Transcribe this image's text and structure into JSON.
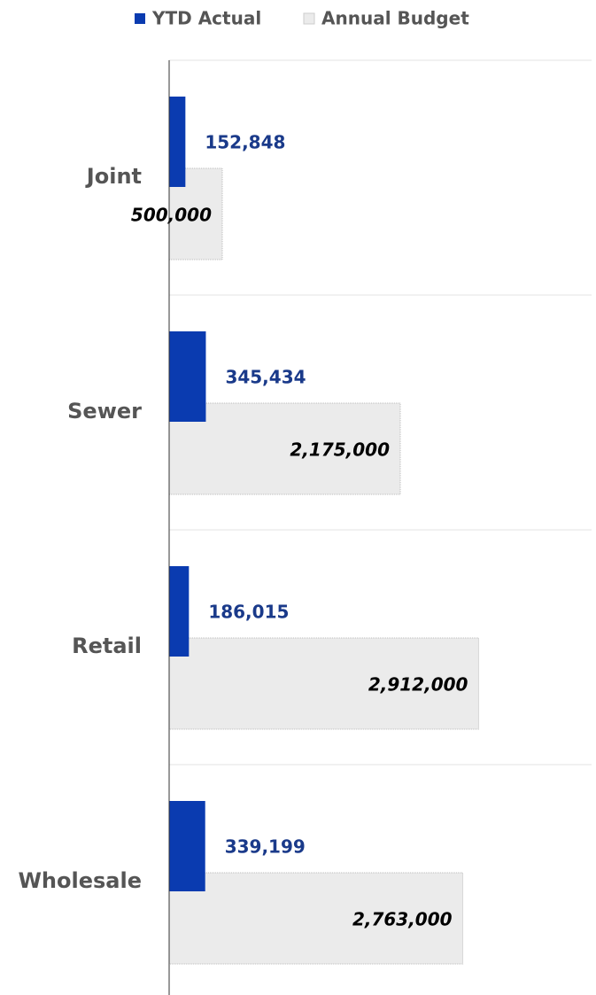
{
  "chart_data": {
    "type": "bar",
    "orientation": "horizontal",
    "categories": [
      "Joint",
      "Sewer",
      "Retail",
      "Wholesale"
    ],
    "series": [
      {
        "name": "YTD Actual",
        "color": "#0a3bb0",
        "values": [
          152848,
          345434,
          186015,
          339199
        ],
        "value_labels": [
          "152,848",
          "345,434",
          "186,015",
          "339,199"
        ]
      },
      {
        "name": "Annual Budget",
        "color": "#ebebeb",
        "values": [
          500000,
          2175000,
          2912000,
          2763000
        ],
        "value_labels": [
          "500,000",
          "2,175,000",
          "2,912,000",
          "2,763,000"
        ]
      }
    ],
    "xlim": [
      0,
      4000000
    ],
    "legend": "top",
    "grid": true
  }
}
